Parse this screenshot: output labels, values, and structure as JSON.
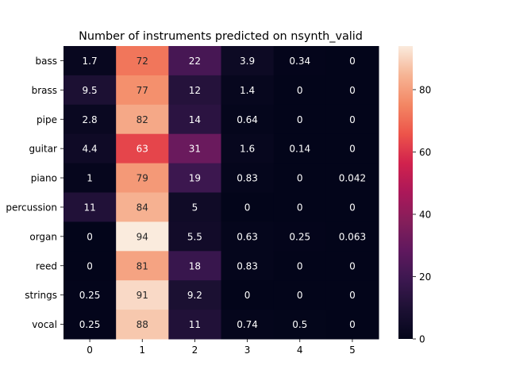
{
  "chart_data": {
    "type": "heatmap",
    "title": "Number of instruments predicted on nsynth_valid",
    "xlabel": "",
    "ylabel": "",
    "x_categories": [
      "0",
      "1",
      "2",
      "3",
      "4",
      "5"
    ],
    "y_categories": [
      "bass",
      "brass",
      "pipe",
      "guitar",
      "piano",
      "percussion",
      "organ",
      "reed",
      "strings",
      "vocal"
    ],
    "values": [
      [
        1.7,
        72,
        22,
        3.9,
        0.34,
        0
      ],
      [
        9.5,
        77,
        12,
        1.4,
        0,
        0
      ],
      [
        2.8,
        82,
        14,
        0.64,
        0,
        0
      ],
      [
        4.4,
        63,
        31,
        1.6,
        0.14,
        0
      ],
      [
        1,
        79,
        19,
        0.83,
        0,
        0.042
      ],
      [
        11,
        84,
        5,
        0,
        0,
        0
      ],
      [
        0,
        94,
        5.5,
        0.63,
        0.25,
        0.063
      ],
      [
        0,
        81,
        18,
        0.83,
        0,
        0
      ],
      [
        0.25,
        91,
        9.2,
        0,
        0,
        0
      ],
      [
        0.25,
        88,
        11,
        0.74,
        0.5,
        0
      ]
    ],
    "annotations": [
      [
        "1.7",
        "72",
        "22",
        "3.9",
        "0.34",
        "0"
      ],
      [
        "9.5",
        "77",
        "12",
        "1.4",
        "0",
        "0"
      ],
      [
        "2.8",
        "82",
        "14",
        "0.64",
        "0",
        "0"
      ],
      [
        "4.4",
        "63",
        "31",
        "1.6",
        "0.14",
        "0"
      ],
      [
        "1",
        "79",
        "19",
        "0.83",
        "0",
        "0.042"
      ],
      [
        "11",
        "84",
        "5",
        "0",
        "0",
        "0"
      ],
      [
        "0",
        "94",
        "5.5",
        "0.63",
        "0.25",
        "0.063"
      ],
      [
        "0",
        "81",
        "18",
        "0.83",
        "0",
        "0"
      ],
      [
        "0.25",
        "91",
        "9.2",
        "0",
        "0",
        "0"
      ],
      [
        "0.25",
        "88",
        "11",
        "0.74",
        "0.5",
        "0"
      ]
    ],
    "colorbar": {
      "colormap": "rocket",
      "vmin": 0,
      "vmax": 94,
      "ticks": [
        0,
        20,
        40,
        60,
        80
      ],
      "tick_labels": [
        "0",
        "20",
        "40",
        "60",
        "80"
      ]
    },
    "grid": false
  }
}
